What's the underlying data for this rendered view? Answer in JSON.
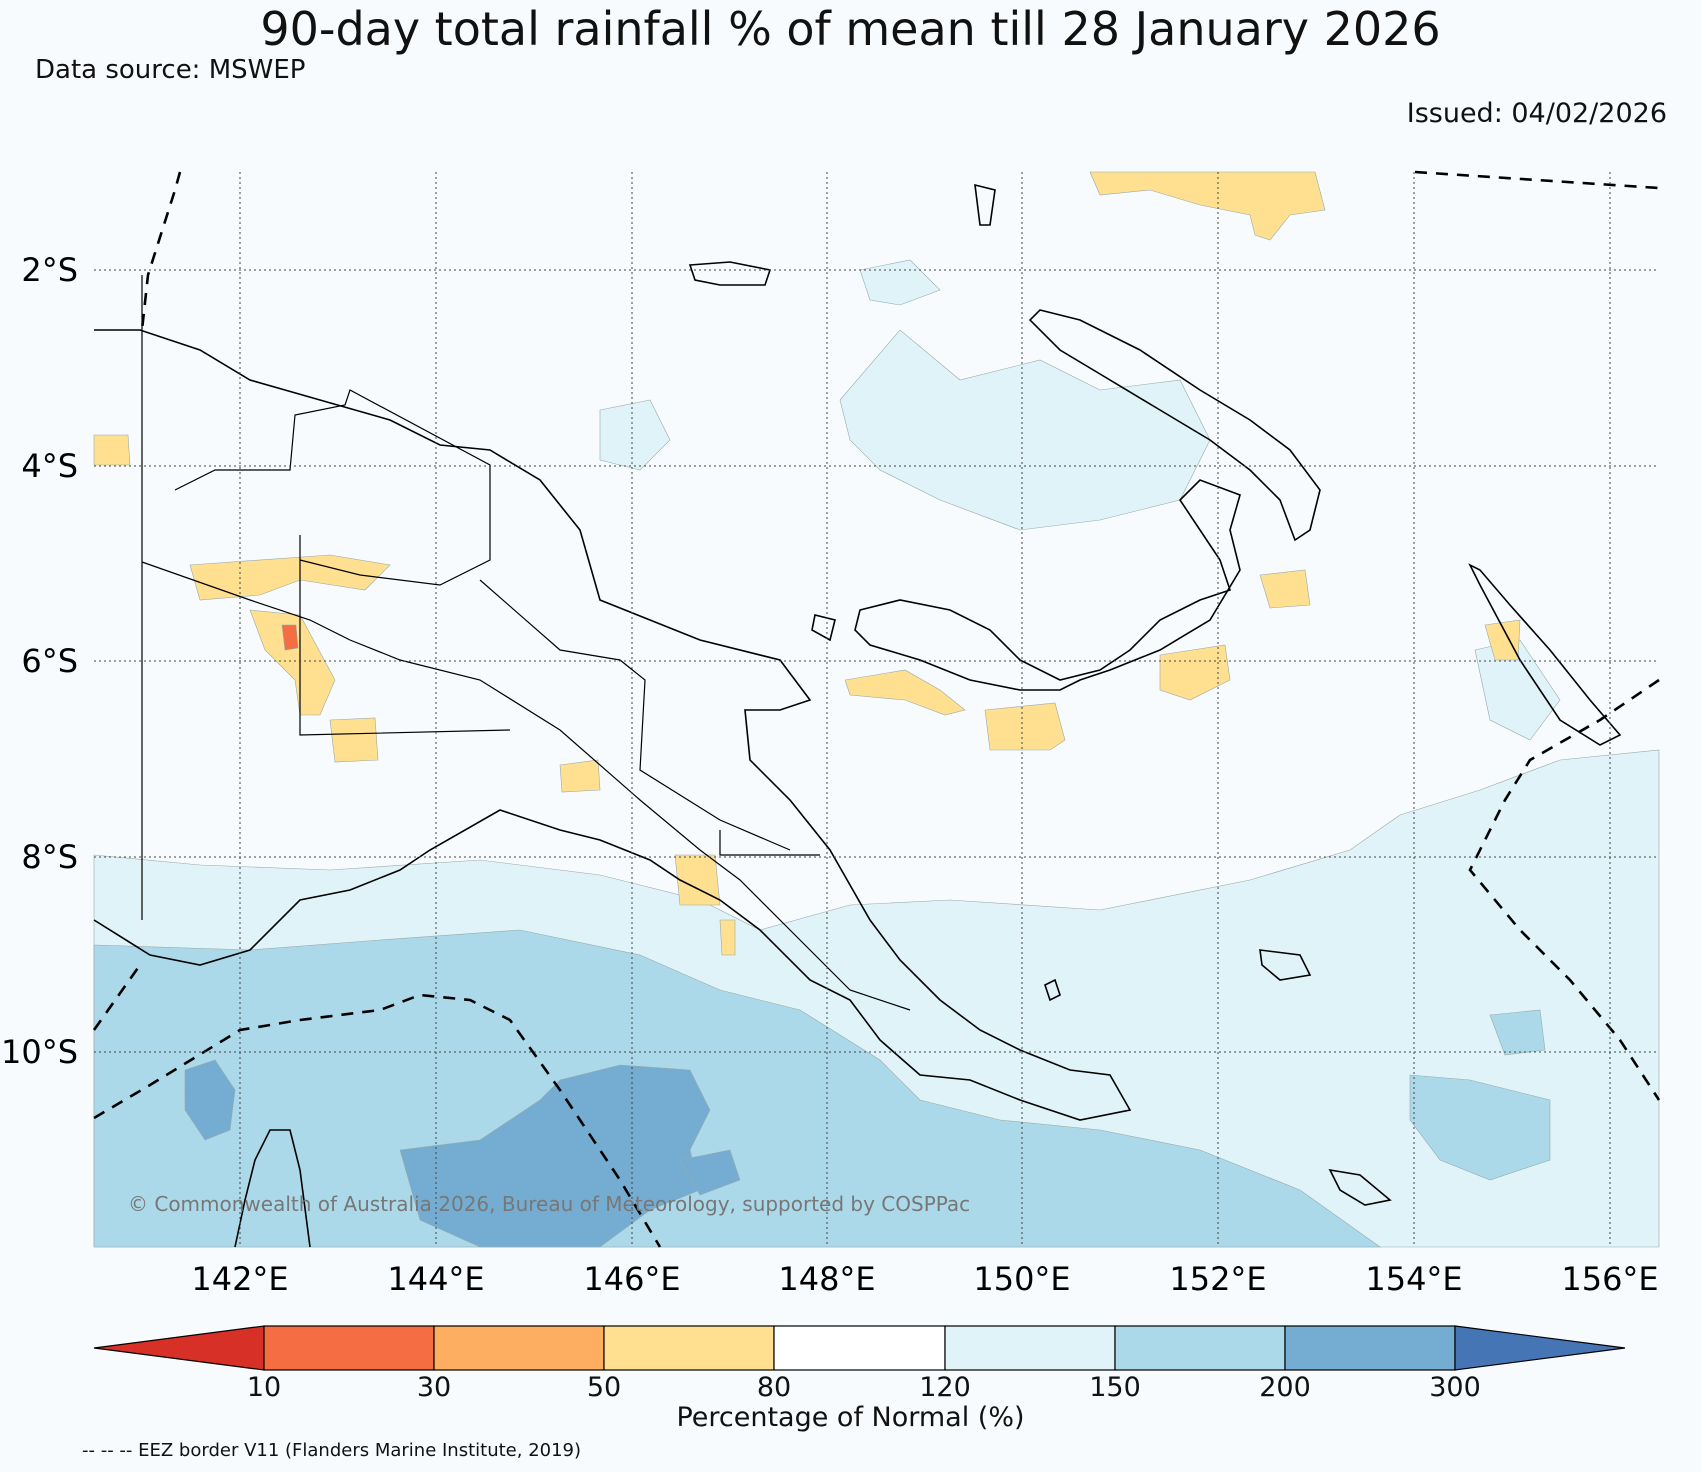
{
  "title": "90-day total rainfall % of mean till 28 January 2026",
  "data_source": "Data source: MSWEP",
  "issued": "Issued: 04/02/2026",
  "copyright": "© Commonwealth of Australia 2026, Bureau of Meteorology, supported by COSPPac",
  "lat_labels": [
    "2°S",
    "4°S",
    "6°S",
    "8°S",
    "10°S"
  ],
  "lon_labels": [
    "142°E",
    "144°E",
    "146°E",
    "148°E",
    "150°E",
    "152°E",
    "154°E",
    "156°E"
  ],
  "colorbar": {
    "title": "Percentage of Normal (%)",
    "ticks": [
      "10",
      "30",
      "50",
      "80",
      "120",
      "150",
      "200",
      "300"
    ],
    "colors": [
      "#d73027",
      "#f46d43",
      "#fdae61",
      "#fee090",
      "#ffffff",
      "#e0f3f8",
      "#abd9e9",
      "#74add1",
      "#4575b4"
    ]
  },
  "eez_note": "-- -- -- EEZ border V11 (Flanders Marine Institute, 2019)",
  "colors": {
    "background": "#f7fbfd",
    "dry": "#fee090",
    "very_dry": "#f46d43",
    "wet_light": "#e0f3f8",
    "wet_medium": "#abd9e9",
    "wet_heavy": "#74add1"
  }
}
